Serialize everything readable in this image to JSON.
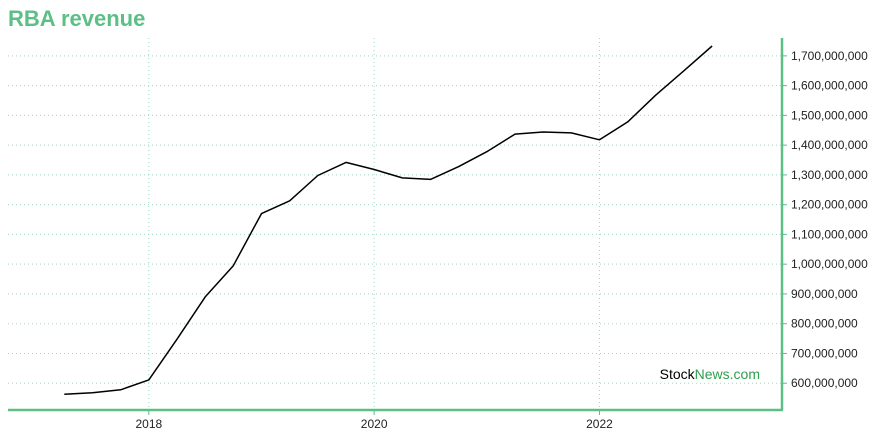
{
  "title": "RBA revenue",
  "watermark": {
    "part1": "Stock",
    "part2": "News",
    "part3": ".com"
  },
  "colors": {
    "title": "#5cbf85",
    "axis": "#5cbf85",
    "grid": "#9fd8c0",
    "line": "#000000",
    "watermark_green": "#2e9e4f"
  },
  "chart_data": {
    "type": "line",
    "title": "RBA revenue",
    "xlabel": "",
    "ylabel": "",
    "grid": true,
    "y_axis_position": "right",
    "xlim": [
      2016.75,
      2023.62
    ],
    "ylim": [
      510000000,
      1760000000
    ],
    "x_ticks": [
      2018,
      2020,
      2022
    ],
    "x_tick_labels": [
      "2018",
      "2020",
      "2022"
    ],
    "y_ticks": [
      600000000,
      700000000,
      800000000,
      900000000,
      1000000000,
      1100000000,
      1200000000,
      1300000000,
      1400000000,
      1500000000,
      1600000000,
      1700000000
    ],
    "y_tick_labels": [
      "600,000,000",
      "700,000,000",
      "800,000,000",
      "900,000,000",
      "1,000,000,000",
      "1,100,000,000",
      "1,200,000,000",
      "1,300,000,000",
      "1,400,000,000",
      "1,500,000,000",
      "1,600,000,000",
      "1,700,000,000"
    ],
    "series": [
      {
        "x": [
          2017.25,
          2017.5,
          2017.75,
          2018.0,
          2018.25,
          2018.5,
          2018.75,
          2019.0,
          2019.25,
          2019.5,
          2019.75,
          2020.0,
          2020.25,
          2020.5,
          2020.75,
          2021.0,
          2021.25,
          2021.5,
          2021.75,
          2022.0,
          2022.25,
          2022.5,
          2022.75,
          2023.0
        ],
        "y": [
          563000000,
          568000000,
          578000000,
          611000000,
          748000000,
          890000000,
          995000000,
          1170000000,
          1213000000,
          1298000000,
          1342000000,
          1318000000,
          1290000000,
          1285000000,
          1328000000,
          1378000000,
          1437000000,
          1444000000,
          1441000000,
          1418000000,
          1478000000,
          1568000000,
          1650000000,
          1733000000
        ]
      }
    ]
  }
}
